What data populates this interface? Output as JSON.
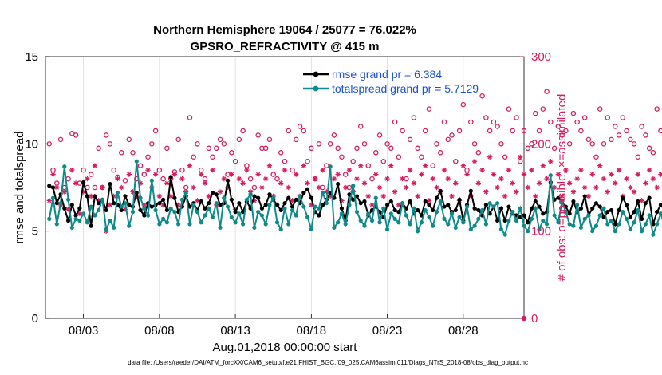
{
  "chart_data": {
    "type": "line",
    "title": "Northern Hemisphere 19064 / 25077 = 76.022%",
    "subtitle": "GPSRO_REFRACTIVITY @ 415 m",
    "xlabel": "Aug.01,2018 00:00:00 start",
    "ylabel": "rmse and totalspread",
    "y2label": "# of obs: o=possible; ×=assimilated",
    "xlim": [
      0,
      31.5
    ],
    "ylim": [
      0,
      15
    ],
    "y2lim": [
      0,
      300
    ],
    "x_ticks": [
      2.5,
      7.5,
      12.5,
      17.5,
      22.5,
      27.5
    ],
    "x_tick_labels": [
      "08/03",
      "08/08",
      "08/13",
      "08/18",
      "08/23",
      "08/28"
    ],
    "y_ticks": [
      0,
      5,
      10,
      15
    ],
    "y2_ticks": [
      0,
      100,
      200,
      300
    ],
    "grid": true,
    "legend_position": "top-right",
    "footnote": "data file: /Users/raeder/DAI/ATM_forcXX/CAM6_setup/f.e21.FHIST_BGC.f09_025.CAM6assim.011/Diags_NTrS_2018-08/obs_diag_output.nc",
    "colors": {
      "rmse": "#000000",
      "spread": "#0f8a8a",
      "obs": "#d81b60",
      "grid": "#dcdcdc"
    },
    "series": [
      {
        "name": "rmse grand pr = 6.384",
        "key": "rmse",
        "axis": "left",
        "x_start": 0.25,
        "x_step": 0.25,
        "values": [
          7.6,
          7.5,
          6.6,
          7.1,
          6.3,
          5.6,
          6.5,
          5.9,
          6.3,
          7.8,
          7.0,
          5.3,
          7.0,
          6.6,
          6.8,
          6.2,
          7.7,
          6.6,
          6.5,
          6.2,
          7.0,
          6.5,
          6.4,
          7.2,
          6.2,
          5.9,
          6.6,
          6.4,
          6.5,
          6.6,
          6.8,
          6.2,
          8.1,
          6.9,
          6.1,
          6.4,
          7.0,
          6.4,
          6.6,
          6.2,
          6.7,
          6.3,
          6.6,
          7.2,
          7.1,
          6.5,
          6.6,
          7.9,
          6.8,
          6.1,
          6.6,
          6.1,
          6.7,
          6.3,
          7.0,
          6.9,
          6.3,
          6.5,
          7.1,
          6.8,
          6.5,
          6.2,
          6.6,
          6.9,
          6.4,
          6.8,
          6.6,
          7.2,
          7.4,
          6.9,
          6.1,
          5.9,
          6.5,
          6.8,
          7.2,
          6.9,
          7.7,
          6.3,
          5.6,
          7.1,
          6.8,
          7.0,
          6.6,
          6.7,
          5.9,
          6.2,
          6.4,
          6.1,
          5.8,
          6.5,
          6.7,
          6.2,
          6.1,
          6.6,
          6.3,
          6.7,
          6.0,
          6.2,
          5.9,
          6.7,
          6.5,
          6.2,
          6.9,
          7.3,
          6.4,
          6.5,
          6.1,
          6.2,
          6.8,
          5.6,
          6.5,
          7.3,
          6.3,
          6.2,
          5.9,
          6.5,
          6.0,
          6.4,
          5.6,
          6.3,
          5.6,
          6.4,
          6.0,
          5.9,
          5.8,
          5.9,
          5.5,
          6.3,
          6.7,
          6.4,
          6.0,
          6.1,
          7.8,
          6.8,
          6.9,
          6.7,
          6.4,
          6.0,
          6.7,
          6.1,
          6.3,
          7.0,
          5.9,
          6.3,
          6.6,
          6.4,
          5.8,
          6.1,
          6.2,
          5.4,
          6.2,
          6.9,
          6.5,
          5.8,
          6.1,
          6.7,
          5.7,
          6.6,
          6.9,
          5.4,
          6.1,
          6.5,
          6.2,
          6.3,
          6.0,
          5.9,
          6.0,
          6.4,
          6.1,
          6.3,
          6.7,
          6.6,
          6.1,
          5.9,
          6.3,
          6.4,
          6.6,
          5.4,
          6.0,
          6.4,
          6.2,
          5.8,
          6.9,
          7.2,
          6.5,
          6.4,
          5.5,
          6.0,
          5.9,
          6.4,
          6.2,
          6.6,
          6.3,
          6.9,
          6.7,
          6.2,
          6.5,
          6.3,
          6.6,
          6.9,
          6.1,
          6.8,
          6.6,
          6.2,
          7.2,
          6.0,
          6.3,
          6.4,
          6.1,
          6.6,
          6.3,
          6.4,
          6.0,
          6.1,
          6.2,
          6.3,
          6.3
        ]
      },
      {
        "name": "totalspread grand pr = 5.7129",
        "key": "spread",
        "axis": "left",
        "x_start": 0.25,
        "x_step": 0.25,
        "values": [
          5.7,
          6.9,
          5.4,
          6.6,
          8.7,
          6.8,
          5.2,
          5.7,
          5.6,
          6.0,
          5.5,
          6.4,
          5.9,
          6.2,
          6.8,
          5.1,
          5.6,
          5.2,
          7.2,
          6.4,
          6.6,
          5.3,
          6.1,
          9.0,
          6.9,
          6.3,
          5.9,
          7.9,
          6.2,
          5.4,
          5.7,
          5.5,
          6.3,
          6.1,
          5.4,
          6.8,
          7.2,
          5.4,
          6.5,
          6.1,
          5.5,
          5.9,
          6.3,
          5.8,
          6.6,
          5.2,
          6.9,
          6.4,
          5.8,
          5.5,
          6.0,
          5.4,
          6.8,
          7.1,
          5.2,
          6.1,
          5.9,
          5.4,
          6.5,
          6.9,
          5.5,
          5.1,
          6.3,
          5.4,
          6.2,
          5.9,
          7.0,
          6.4,
          5.8,
          5.1,
          6.4,
          6.3,
          7.2,
          6.6,
          8.7,
          5.2,
          5.5,
          6.0,
          5.4,
          6.5,
          7.6,
          6.1,
          5.6,
          5.3,
          6.0,
          5.6,
          6.9,
          5.5,
          6.3,
          5.1,
          6.0,
          5.7,
          5.5,
          6.6,
          5.9,
          5.4,
          6.3,
          5.0,
          5.5,
          6.2,
          5.8,
          5.3,
          6.1,
          6.7,
          5.7,
          5.4,
          6.0,
          5.2,
          5.8,
          5.5,
          6.4,
          5.1,
          5.3,
          5.7,
          6.2,
          5.4,
          6.6,
          6.4,
          6.6,
          5.1,
          4.8,
          5.6,
          6.1,
          5.6,
          6.3,
          5.3,
          5.0,
          5.7,
          6.3,
          5.1,
          5.6,
          5.4,
          8.2,
          5.9,
          5.5,
          6.7,
          6.1,
          5.4,
          5.3,
          6.5,
          5.2,
          5.7,
          5.9,
          5.0,
          5.3,
          5.9,
          6.3,
          5.4,
          5.6,
          5.0,
          5.4,
          6.1,
          5.7,
          5.1,
          5.5,
          6.2,
          5.0,
          5.4,
          5.9,
          4.8,
          5.4,
          6.0,
          5.3,
          5.5,
          5.1,
          5.4,
          5.8,
          5.2,
          5.6,
          5.0,
          5.3,
          5.8,
          5.5,
          5.1,
          5.6,
          5.3,
          6.3,
          4.9,
          5.4,
          5.0,
          5.7,
          5.6,
          6.2,
          5.3,
          5.0,
          5.4,
          4.8,
          5.2,
          5.6,
          6.0,
          5.3,
          5.5,
          5.8,
          6.1,
          5.4,
          5.0,
          5.6,
          5.2,
          4.9,
          6.5,
          5.4,
          5.6,
          5.0,
          5.3,
          4.7,
          5.5,
          5.8,
          5.3,
          4.6,
          5.5,
          6.2,
          4.9,
          5.1,
          4.4,
          5.3,
          5.7,
          5.1
        ]
      },
      {
        "name": "possible",
        "key": "possible",
        "axis": "right",
        "marker": "o",
        "x_start": 0.25,
        "x_step": 0.25,
        "values": [
          200,
          170,
          155,
          205,
          150,
          160,
          212,
          210,
          155,
          170,
          150,
          165,
          150,
          195,
          150,
          210,
          200,
          170,
          162,
          190,
          158,
          205,
          190,
          160,
          175,
          165,
          185,
          200,
          215,
          170,
          160,
          195,
          160,
          168,
          205,
          170,
          150,
          230,
          185,
          200,
          170,
          160,
          195,
          185,
          195,
          205,
          200,
          165,
          190,
          180,
          205,
          215,
          175,
          160,
          150,
          210,
          195,
          195,
          205,
          165,
          160,
          190,
          180,
          215,
          170,
          205,
          220,
          215,
          180,
          195,
          160,
          200,
          150,
          175,
          200,
          210,
          195,
          185,
          165,
          150,
          180,
          195,
          220,
          200,
          175,
          160,
          190,
          210,
          180,
          200,
          195,
          225,
          185,
          215,
          160,
          205,
          230,
          195,
          185,
          215,
          240,
          175,
          200,
          190,
          225,
          205,
          210,
          180,
          215,
          245,
          170,
          225,
          200,
          190,
          255,
          230,
          215,
          225,
          220,
          200,
          185,
          240,
          215,
          230,
          180,
          215,
          195,
          200,
          235,
          215,
          240,
          260,
          225,
          195,
          220,
          210,
          215,
          200,
          235,
          225,
          215,
          230,
          205,
          200,
          185,
          240,
          200,
          230,
          205,
          220,
          210,
          230,
          215,
          205,
          200,
          185,
          220,
          210,
          195,
          190,
          240,
          215,
          220,
          195,
          230,
          255,
          220,
          200,
          240,
          205,
          215,
          190,
          250,
          235,
          225,
          200,
          220,
          195,
          245,
          215,
          200,
          160,
          205,
          210,
          230,
          240,
          180,
          195,
          215,
          230,
          195,
          185,
          215,
          240,
          235,
          210,
          220,
          195,
          230,
          225,
          200,
          215,
          240,
          195,
          220,
          285,
          210,
          200,
          250,
          225,
          195,
          260,
          215,
          200,
          230,
          245,
          205
        ]
      },
      {
        "name": "assimilated",
        "key": "assimilated",
        "axis": "right",
        "marker": "*",
        "x_start": 0.25,
        "x_step": 0.25,
        "values": [
          135,
          165,
          150,
          130,
          145,
          125,
          170,
          155,
          120,
          145,
          160,
          140,
          175,
          135,
          150,
          100,
          130,
          140,
          160,
          150,
          125,
          165,
          145,
          140,
          155,
          130,
          170,
          150,
          165,
          140,
          130,
          155,
          140,
          165,
          130,
          160,
          145,
          175,
          150,
          135,
          165,
          155,
          140,
          170,
          130,
          145,
          160,
          150,
          165,
          125,
          160,
          155,
          170,
          145,
          135,
          165,
          150,
          160,
          175,
          140,
          130,
          155,
          170,
          150,
          135,
          165,
          140,
          175,
          155,
          130,
          160,
          150,
          170,
          145,
          140,
          160,
          165,
          135,
          150,
          170,
          145,
          160,
          175,
          155,
          140,
          130,
          165,
          150,
          140,
          160,
          175,
          145,
          130,
          160,
          150,
          170,
          155,
          140,
          165,
          175,
          135,
          160,
          150,
          145,
          170,
          160,
          140,
          155,
          135,
          175,
          165,
          140,
          180,
          155,
          170,
          145,
          185,
          165,
          150,
          160,
          140,
          170,
          155,
          145,
          185,
          165,
          150,
          170,
          140,
          155,
          175,
          160,
          180,
          150,
          165,
          140,
          170,
          155,
          145,
          160,
          170,
          150,
          140,
          165,
          150,
          175,
          160,
          145,
          165,
          155,
          170,
          140,
          160,
          150,
          145,
          165,
          135,
          155,
          170,
          160,
          150,
          165,
          140,
          155,
          175,
          160,
          145,
          150,
          135,
          160,
          165,
          145,
          170,
          155,
          150,
          140,
          165,
          160,
          150,
          145,
          170,
          80,
          155,
          165,
          140,
          160,
          150,
          145,
          170,
          155,
          165,
          150,
          175,
          160,
          145,
          150,
          165,
          170,
          155,
          140,
          160,
          150,
          165,
          145,
          170,
          155,
          160,
          175,
          150,
          165,
          145,
          160,
          155,
          170,
          150,
          165,
          175
        ]
      }
    ]
  }
}
